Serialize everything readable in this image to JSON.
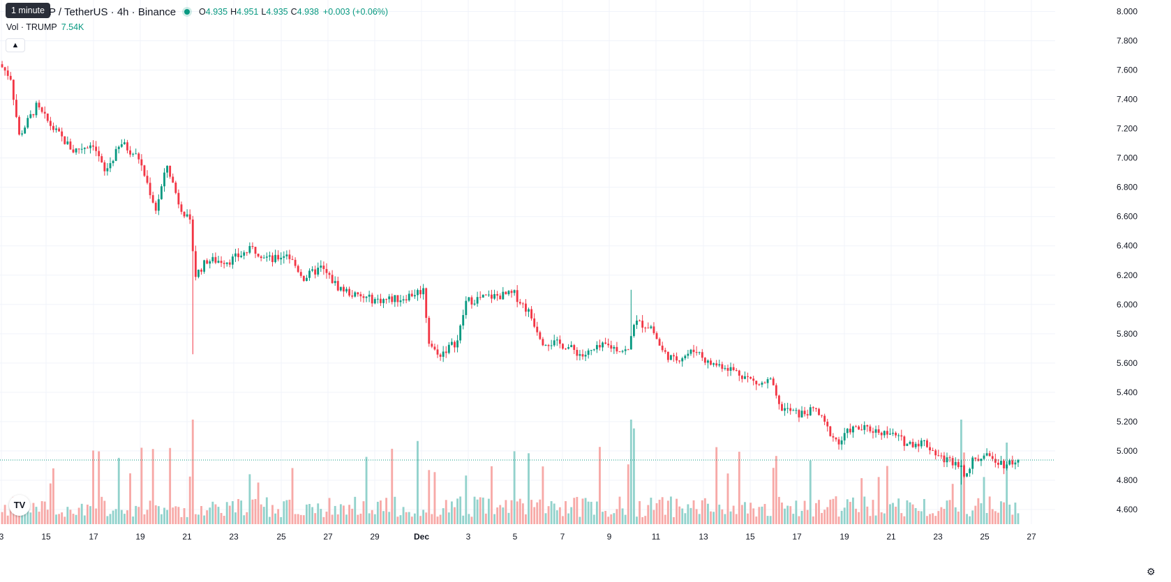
{
  "tooltip": "1 minute",
  "legend": {
    "symbol": "P / TetherUS · 4h · Binance",
    "open_label": "O",
    "open": "4.935",
    "high_label": "H",
    "high": "4.951",
    "low_label": "L",
    "low": "4.935",
    "close_label": "C",
    "close": "4.938",
    "change": "+0.003 (+0.06%)"
  },
  "volume": {
    "label": "Vol · TRUMP",
    "value": "7.54K"
  },
  "collapse_icon": "chevron-up-icon",
  "logo": "tradingview-logo",
  "settings_icon": "gear-icon",
  "colors": {
    "up": "#089981",
    "down": "#f23645",
    "vol_up": "#92d2cc",
    "vol_down": "#f7a9a7"
  },
  "chart_data": {
    "type": "candlestick",
    "symbol": "TRUMP / TetherUS",
    "interval": "4h",
    "exchange": "Binance",
    "x_tick_labels": [
      "3",
      "15",
      "17",
      "19",
      "21",
      "23",
      "25",
      "27",
      "29",
      "Dec",
      "3",
      "5",
      "7",
      "9",
      "11",
      "13",
      "15",
      "17",
      "19",
      "21",
      "23",
      "25",
      "27"
    ],
    "y_tick_labels": [
      "8.000",
      "7.800",
      "7.600",
      "7.400",
      "7.200",
      "7.000",
      "6.800",
      "6.600",
      "6.400",
      "6.200",
      "6.000",
      "5.800",
      "5.600",
      "5.400",
      "5.200",
      "5.000",
      "4.800",
      "4.600"
    ],
    "ylim": [
      4.5,
      8.05
    ],
    "last_price": "4.938",
    "last_volume": "7.54K",
    "grid": true,
    "keypoints": [
      {
        "i": 0,
        "p": 7.62
      },
      {
        "i": 3,
        "p": 7.55
      },
      {
        "i": 6,
        "p": 7.15
      },
      {
        "i": 12,
        "p": 7.35
      },
      {
        "i": 18,
        "p": 7.2
      },
      {
        "i": 25,
        "p": 7.05
      },
      {
        "i": 32,
        "p": 7.1
      },
      {
        "i": 36,
        "p": 6.9
      },
      {
        "i": 42,
        "p": 7.1
      },
      {
        "i": 48,
        "p": 7.0
      },
      {
        "i": 54,
        "p": 6.65
      },
      {
        "i": 58,
        "p": 6.95
      },
      {
        "i": 62,
        "p": 6.7
      },
      {
        "i": 66,
        "p": 6.55
      },
      {
        "i": 68,
        "p": 6.2
      },
      {
        "i": 72,
        "p": 6.3
      },
      {
        "i": 80,
        "p": 6.3
      },
      {
        "i": 88,
        "p": 6.38
      },
      {
        "i": 95,
        "p": 6.3
      },
      {
        "i": 100,
        "p": 6.35
      },
      {
        "i": 106,
        "p": 6.18
      },
      {
        "i": 112,
        "p": 6.25
      },
      {
        "i": 118,
        "p": 6.12
      },
      {
        "i": 125,
        "p": 6.05
      },
      {
        "i": 132,
        "p": 6.03
      },
      {
        "i": 140,
        "p": 6.04
      },
      {
        "i": 148,
        "p": 6.1
      },
      {
        "i": 150,
        "p": 5.75
      },
      {
        "i": 153,
        "p": 5.65
      },
      {
        "i": 160,
        "p": 5.75
      },
      {
        "i": 163,
        "p": 6.02
      },
      {
        "i": 170,
        "p": 6.05
      },
      {
        "i": 180,
        "p": 6.07
      },
      {
        "i": 185,
        "p": 5.95
      },
      {
        "i": 190,
        "p": 5.75
      },
      {
        "i": 198,
        "p": 5.72
      },
      {
        "i": 204,
        "p": 5.65
      },
      {
        "i": 212,
        "p": 5.72
      },
      {
        "i": 220,
        "p": 5.68
      },
      {
        "i": 222,
        "p": 5.88
      },
      {
        "i": 228,
        "p": 5.85
      },
      {
        "i": 232,
        "p": 5.68
      },
      {
        "i": 236,
        "p": 5.62
      },
      {
        "i": 244,
        "p": 5.69
      },
      {
        "i": 248,
        "p": 5.6
      },
      {
        "i": 254,
        "p": 5.58
      },
      {
        "i": 260,
        "p": 5.52
      },
      {
        "i": 266,
        "p": 5.45
      },
      {
        "i": 270,
        "p": 5.48
      },
      {
        "i": 273,
        "p": 5.3
      },
      {
        "i": 280,
        "p": 5.25
      },
      {
        "i": 286,
        "p": 5.28
      },
      {
        "i": 290,
        "p": 5.15
      },
      {
        "i": 294,
        "p": 5.05
      },
      {
        "i": 298,
        "p": 5.15
      },
      {
        "i": 304,
        "p": 5.15
      },
      {
        "i": 312,
        "p": 5.12
      },
      {
        "i": 318,
        "p": 5.05
      },
      {
        "i": 324,
        "p": 5.06
      },
      {
        "i": 330,
        "p": 4.95
      },
      {
        "i": 336,
        "p": 4.92
      },
      {
        "i": 338,
        "p": 4.85
      },
      {
        "i": 342,
        "p": 4.95
      },
      {
        "i": 348,
        "p": 4.96
      },
      {
        "i": 352,
        "p": 4.91
      },
      {
        "i": 357,
        "p": 4.938
      }
    ],
    "spikes": [
      {
        "i": 67,
        "low": 5.66
      },
      {
        "i": 221,
        "high": 6.1
      },
      {
        "i": 337,
        "low": 4.77
      }
    ]
  }
}
